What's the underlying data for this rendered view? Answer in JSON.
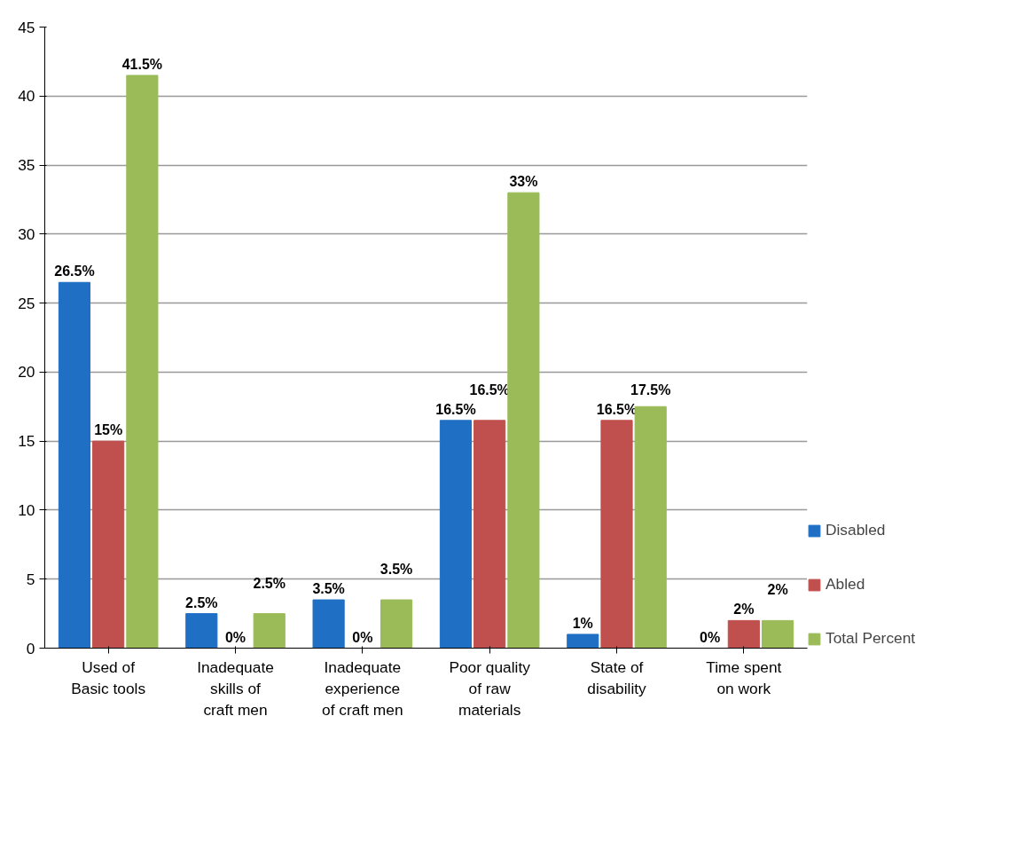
{
  "chart_data": {
    "type": "bar",
    "categories": [
      "Used of Basic tools",
      "Inadequate skills of craft men",
      "Inadequate experience of craft men",
      "Poor quality of raw materials",
      "State of disability",
      "Time spent on work"
    ],
    "series": [
      {
        "name": "Disabled",
        "color": "#1f6fc5",
        "values": [
          26.5,
          2.5,
          3.5,
          16.5,
          1,
          0
        ],
        "value_labels": [
          "26.5%",
          "2.5%",
          "3.5%",
          "16.5%",
          "1%",
          "0%"
        ]
      },
      {
        "name": "Abled",
        "color": "#c0504d",
        "values": [
          15,
          0,
          0,
          16.5,
          16.5,
          2
        ],
        "value_labels": [
          "15%",
          "0%",
          "0%",
          "16.5%",
          "16.5%",
          "2%"
        ]
      },
      {
        "name": "Total Percent",
        "color": "#9bbb59",
        "values": [
          41.5,
          2.5,
          3.5,
          33,
          17.5,
          2
        ],
        "value_labels": [
          "41.5%",
          "2.5%",
          "3.5%",
          "33%",
          "17.5%",
          "2%"
        ]
      }
    ],
    "ylim": [
      0,
      45
    ],
    "yticks": [
      0,
      5,
      10,
      15,
      20,
      25,
      30,
      35,
      40,
      45
    ],
    "grid": "y",
    "legend": "bottom right"
  }
}
